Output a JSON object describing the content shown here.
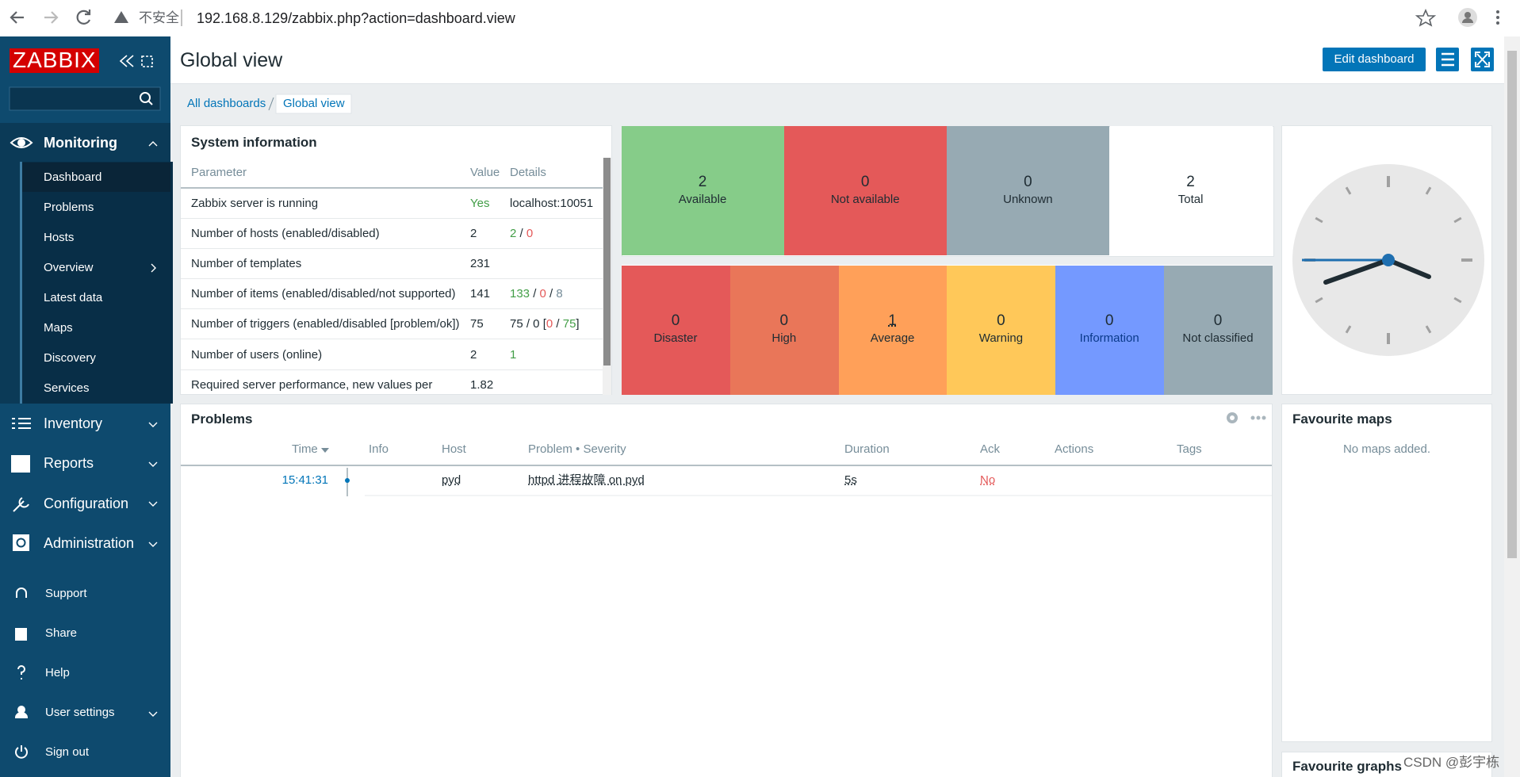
{
  "browser": {
    "security": "不安全",
    "url": "192.168.8.129/zabbix.php?action=dashboard.view"
  },
  "sidebar": {
    "logo": "ZABBIX",
    "menu": [
      {
        "label": "Monitoring",
        "items": [
          "Dashboard",
          "Problems",
          "Hosts",
          "Overview",
          "Latest data",
          "Maps",
          "Discovery",
          "Services"
        ]
      },
      {
        "label": "Inventory"
      },
      {
        "label": "Reports"
      },
      {
        "label": "Configuration"
      },
      {
        "label": "Administration"
      }
    ],
    "footer": [
      "Support",
      "Share",
      "Help",
      "User settings",
      "Sign out"
    ]
  },
  "header": {
    "title": "Global view",
    "button": "Edit dashboard"
  },
  "breadcrumbs": [
    "All dashboards",
    "Global view"
  ],
  "system_information": {
    "title": "System information",
    "columns": [
      "Parameter",
      "Value",
      "Details"
    ],
    "rows": [
      [
        "Zabbix server is running",
        {
          "text": "Yes",
          "color": "#429e47"
        },
        [
          "localhost:10051"
        ]
      ],
      [
        "Number of hosts (enabled/disabled)",
        "2",
        [
          {
            "text": "2",
            "color": "#429e47"
          },
          " / ",
          {
            "text": "0",
            "color": "#e45959"
          }
        ]
      ],
      [
        "Number of templates",
        "231",
        []
      ],
      [
        "Number of items (enabled/disabled/not supported)",
        "141",
        [
          {
            "text": "133",
            "color": "#429e47"
          },
          " / ",
          {
            "text": "0",
            "color": "#e45959"
          },
          " / ",
          {
            "text": "8",
            "color": "#768d99"
          }
        ]
      ],
      [
        "Number of triggers (enabled/disabled [problem/ok])",
        "75",
        [
          "75 / 0 [",
          {
            "text": "0",
            "color": "#e45959"
          },
          " / ",
          {
            "text": "75",
            "color": "#429e47"
          },
          "]"
        ]
      ],
      [
        "Number of users (online)",
        "2",
        [
          {
            "text": "1",
            "color": "#429e47"
          }
        ]
      ],
      [
        "Required server performance, new values per",
        "1.82",
        []
      ]
    ]
  },
  "host_availability": [
    {
      "count": 2,
      "label": "Available",
      "color": "#86cc89"
    },
    {
      "count": 0,
      "label": "Not available",
      "color": "#e45959"
    },
    {
      "count": 0,
      "label": "Unknown",
      "color": "#97aab3"
    },
    {
      "count": 2,
      "label": "Total",
      "color": "#ffffff"
    }
  ],
  "problems_by_severity": [
    {
      "count": 0,
      "label": "Disaster",
      "color": "#e45959"
    },
    {
      "count": 0,
      "label": "High",
      "color": "#e97659"
    },
    {
      "count": 1,
      "label": "Average",
      "color": "#ffa059"
    },
    {
      "count": 0,
      "label": "Warning",
      "color": "#ffc859"
    },
    {
      "count": 0,
      "label": "Information",
      "color": "#7499ff"
    },
    {
      "count": 0,
      "label": "Not classified",
      "color": "#97aab3"
    }
  ],
  "problems": {
    "title": "Problems",
    "columns": [
      "Time",
      "Info",
      "Host",
      "Problem • Severity",
      "Duration",
      "Ack",
      "Actions",
      "Tags"
    ],
    "rows": [
      {
        "time": "15:41:31",
        "host": "pyd",
        "problem": "httpd 进程故障 on pyd",
        "duration": "5s",
        "ack": "No"
      }
    ]
  },
  "favourite_maps": {
    "title": "Favourite maps",
    "message": "No maps added."
  },
  "favourite_graphs": {
    "title": "Favourite graphs"
  },
  "watermark": "CSDN @彭宇栋"
}
